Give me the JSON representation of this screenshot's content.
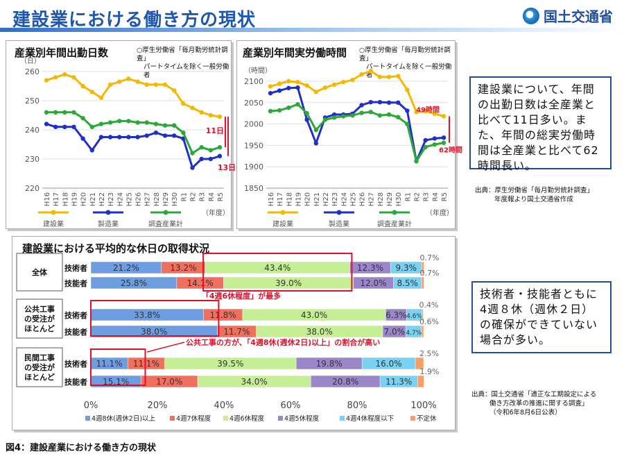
{
  "header": {
    "title": "建設業における働き方の現状",
    "logo_text": "国土交通省"
  },
  "callouts": {
    "top": "建設業について、年間の出勤日数は全産業と比べて11日多い。また、年間の総実労働時間は全産業と比べて62時間長い。",
    "bottom": "技術者・技能者ともに4週８休（週休２日）の確保ができていない場合が多い。"
  },
  "sources": {
    "top": [
      "出典：厚生労働省「毎月勤労統計調査」",
      "年度報より国土交通省作成"
    ],
    "bottom": [
      "出典：国土交通省「適正な工期設定による",
      "働き方改革の推進に関する調査」",
      "（令和6年8月6日公表）"
    ]
  },
  "caption": "図4：建設産業における働き方の現状",
  "colors": {
    "construction": "#f5b800",
    "manufacturing": "#1f2fc8",
    "survey": "#2ca838",
    "highlight": "#e0102a"
  },
  "chart_data": [
    {
      "type": "line",
      "title": "産業別年間出勤日数",
      "note": [
        "○厚生労働省「毎月勤労統計調査」",
        "パートタイムを除く一般労働者"
      ],
      "ylabel": "（日）",
      "xlabel": "（年度）",
      "ylim": [
        220,
        260
      ],
      "yticks": [
        220,
        230,
        240,
        250,
        260
      ],
      "categories": [
        "H16",
        "H17",
        "H18",
        "H19",
        "H20",
        "H21",
        "H22",
        "H23",
        "H24",
        "H25",
        "H26",
        "H27",
        "H28",
        "H29",
        "H30",
        "R1",
        "R2",
        "R3",
        "R4",
        "R5"
      ],
      "series": [
        {
          "name": "建設業",
          "values": [
            257,
            258,
            259,
            258,
            255,
            253,
            251,
            255.5,
            256.5,
            257.5,
            256.5,
            255.5,
            255.5,
            255.5,
            253.5,
            249,
            247.5,
            246,
            245,
            244.5
          ]
        },
        {
          "name": "製造業",
          "values": [
            242,
            241,
            241,
            241,
            237,
            233,
            237.5,
            237.5,
            237.5,
            237.5,
            237.5,
            238,
            239,
            238,
            238,
            237,
            227,
            230,
            230,
            231
          ]
        },
        {
          "name": "調査産業計",
          "values": [
            246,
            246,
            246,
            246,
            244,
            241,
            242,
            242.5,
            243,
            243,
            242.5,
            242.5,
            242,
            241.5,
            241.5,
            239,
            232,
            234,
            233,
            234
          ]
        }
      ],
      "annotations": [
        "11日",
        "13日"
      ]
    },
    {
      "type": "line",
      "title": "産業別年間実労働時間",
      "note": [
        "○厚生労働省「毎月勤労統計調査」",
        "パートタイムを除く一般労働者"
      ],
      "ylabel": "（時間）",
      "xlabel": "（年度）",
      "ylim": [
        1850,
        2100
      ],
      "yticks": [
        1850,
        1900,
        1950,
        2000,
        2050,
        2100
      ],
      "categories": [
        "H16",
        "H17",
        "H18",
        "H19",
        "H20",
        "H21",
        "H22",
        "H23",
        "H24",
        "H25",
        "H26",
        "H27",
        "H28",
        "H29",
        "H30",
        "R1",
        "R2",
        "R3",
        "R4",
        "R5"
      ],
      "series": [
        {
          "name": "建設業",
          "values": [
            2088,
            2094,
            2100,
            2098,
            2090,
            2075,
            2085,
            2092,
            2098,
            2103,
            2116,
            2124,
            2110,
            2110,
            2112,
            2080,
            2028,
            2030,
            2024,
            2018
          ]
        },
        {
          "name": "製造業",
          "values": [
            2072,
            2078,
            2084,
            2085,
            2010,
            1955,
            2015,
            2022,
            2022,
            2024,
            2044,
            2051,
            2051,
            2050,
            2050,
            2031,
            1913,
            1962,
            1966,
            1968
          ]
        },
        {
          "name": "調査産業計",
          "values": [
            2030,
            2032,
            2038,
            2046,
            2025,
            1986,
            2010,
            2015,
            2018,
            2020,
            2026,
            2028,
            2020,
            2022,
            2016,
            2000,
            1913,
            1946,
            1952,
            1956
          ]
        }
      ],
      "annotations": [
        "49時間",
        "62時間"
      ]
    },
    {
      "type": "bar",
      "orientation": "horizontal-stacked-100",
      "title": "建設業における平均的な休日の取得状況",
      "xticks": [
        "0%",
        "20%",
        "40%",
        "60%",
        "80%",
        "100%"
      ],
      "legend": [
        "4週8休(週休2日)以上",
        "4週7休程度",
        "4週6休程度",
        "4週5休程度",
        "4週4休程度以下",
        "不定休"
      ],
      "series_colors": [
        "#6f9ee0",
        "#f07060",
        "#c6ef95",
        "#9b86c9",
        "#7ad1f2",
        "#f5a06a"
      ],
      "groups": [
        {
          "label": "全体",
          "rows": [
            {
              "label": "技術者",
              "values": [
                21.2,
                13.2,
                43.4,
                12.3,
                9.3,
                0.7
              ],
              "texts": [
                "21.2%",
                "13.2%",
                "43.4%",
                "12.3%",
                "9.3%",
                "0.7%"
              ]
            },
            {
              "label": "技能者",
              "values": [
                25.8,
                14.1,
                39.0,
                12.0,
                8.5,
                0.7
              ],
              "texts": [
                "25.8%",
                "14.1%",
                "39.0%",
                "12.0%",
                "8.5%",
                "0.7%"
              ]
            }
          ]
        },
        {
          "label": "公共工事の受注がほとんど",
          "rows": [
            {
              "label": "技術者",
              "values": [
                33.8,
                11.8,
                43.0,
                6.3,
                4.6,
                0.4
              ],
              "texts": [
                "33.8%",
                "11.8%",
                "43.0%",
                "6.3%",
                "4.6%",
                "0.4%"
              ]
            },
            {
              "label": "技能者",
              "values": [
                38.0,
                11.7,
                38.0,
                7.0,
                4.7,
                0.6
              ],
              "texts": [
                "38.0%",
                "11.7%",
                "38.0%",
                "7.0%",
                "4.7%",
                "0.6%"
              ]
            }
          ]
        },
        {
          "label": "民間工事の受注がほとんど",
          "rows": [
            {
              "label": "技術者",
              "values": [
                11.1,
                11.1,
                39.5,
                19.8,
                16.0,
                2.5
              ],
              "texts": [
                "11.1%",
                "11.1%",
                "39.5%",
                "19.8%",
                "16.0%",
                "2.5%"
              ]
            },
            {
              "label": "技能者",
              "values": [
                15.1,
                17.0,
                34.0,
                20.8,
                11.3,
                1.9
              ],
              "texts": [
                "15.1%",
                "17.0%",
                "34.0%",
                "20.8%",
                "11.3%",
                "1.9%"
              ]
            }
          ]
        }
      ],
      "annotations": [
        "「4週6休程度」が最多",
        "公共工事の方が、「4週8休(週休2日)以上」の割合が高い"
      ]
    }
  ]
}
